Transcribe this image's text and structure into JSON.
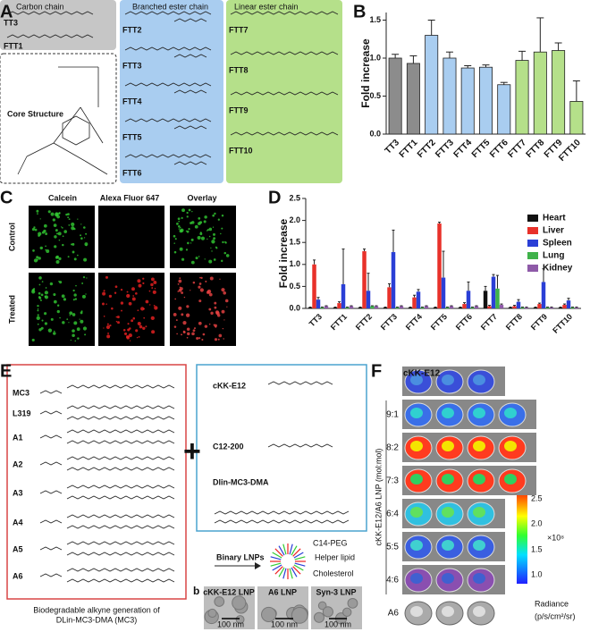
{
  "panels": {
    "letters": [
      "A",
      "B",
      "C",
      "D",
      "E",
      "F"
    ],
    "a": {
      "carbon_title": "Carbon chain",
      "carbon": [
        "TT3",
        "FTT1"
      ],
      "core_title": "Core Structure",
      "branched_title": "Branched ester chain",
      "branched": [
        "FTT2",
        "FTT3",
        "FTT4",
        "FTT5",
        "FTT6"
      ],
      "linear_title": "Linear ester chain",
      "linear": [
        "FTT7",
        "FTT8",
        "FTT9",
        "FTT10"
      ]
    },
    "c": {
      "columns": [
        "Calcein",
        "Alexa Fluor 647",
        "Overlay"
      ],
      "rows": [
        "Control",
        "Treated"
      ]
    },
    "e": {
      "lipids": [
        "MC3",
        "L319",
        "A1",
        "A2",
        "A3",
        "A4",
        "A5",
        "A6"
      ],
      "caption": [
        "Biodegradable alkyne generation of",
        "DLin-MC3-DMA (MC3)"
      ],
      "references": [
        "cKK-E12",
        "C12-200",
        "Dlin-MC3-DMA"
      ],
      "binary": "Binary LNPs",
      "components": [
        "C14-PEG",
        "Helper lipid",
        "Cholesterol"
      ],
      "sub": "b",
      "tem": [
        "cKK-E12 LNP",
        "A6 LNP",
        "Syn-3 LNP"
      ],
      "scale": [
        "100 nm",
        "100 nm",
        "100 nm"
      ]
    },
    "f": {
      "rows": [
        "cKK-E12",
        "9:1",
        "8:2",
        "7:3",
        "6:4",
        "5:5",
        "4:6",
        "A6"
      ],
      "axis": "cKK-E12/A6 LNP (mol:mol)",
      "colorbar_ticks": [
        "2.5",
        "2.0",
        "1.5",
        "1.0"
      ],
      "multiplier": "×10⁸",
      "unit": [
        "Radiance",
        "(p/s/cm²/sr)"
      ]
    }
  },
  "chart_data": [
    {
      "type": "bar",
      "ylabel": "Fold increase",
      "categories": [
        "TT3",
        "FTT1",
        "FTT2",
        "FTT3",
        "FTT4",
        "FTT5",
        "FTT6",
        "FTT7",
        "FTT8",
        "FTT9",
        "FTT10"
      ],
      "values": [
        1.0,
        0.93,
        1.3,
        1.0,
        0.87,
        0.88,
        0.65,
        0.97,
        1.08,
        1.1,
        0.43
      ],
      "errors": [
        0.05,
        0.1,
        0.2,
        0.08,
        0.03,
        0.03,
        0.03,
        0.12,
        0.45,
        0.1,
        0.27
      ],
      "colors": [
        "#8c8c8c",
        "#8c8c8c",
        "#a9cdf0",
        "#a9cdf0",
        "#a9cdf0",
        "#a9cdf0",
        "#a9cdf0",
        "#b5e08a",
        "#b5e08a",
        "#b5e08a",
        "#b5e08a"
      ],
      "ylim": [
        0,
        1.6
      ],
      "yticks": [
        {
          "value": 0,
          "label": "0.0"
        },
        0.5,
        {
          "value": 1,
          "label": "1.0"
        },
        1.5
      ]
    },
    {
      "type": "grouped_bar",
      "ylabel": "Fold increase",
      "legend": "upper right",
      "categories": [
        "TT3",
        "FTT1",
        "FTT2",
        "FTT3",
        "FTT4",
        "FTT5",
        "FTT6",
        "FTT7",
        "FTT8",
        "FTT9",
        "FTT10"
      ],
      "series": [
        {
          "name": "Heart",
          "color": "#111111",
          "values": [
            0.02,
            0.02,
            0.02,
            0.02,
            0.02,
            0.02,
            0.02,
            0.4,
            0.02,
            0.02,
            0.02
          ],
          "errors": [
            0.01,
            0.01,
            0.01,
            0.01,
            0.01,
            0.01,
            0.01,
            0.1,
            0.01,
            0.01,
            0.01
          ]
        },
        {
          "name": "Liver",
          "color": "#e8312a",
          "values": [
            1.0,
            0.12,
            1.3,
            0.48,
            0.25,
            1.93,
            0.1,
            0.05,
            0.05,
            0.1,
            0.08
          ],
          "errors": [
            0.1,
            0.03,
            0.05,
            0.08,
            0.05,
            0.03,
            0.03,
            0.02,
            0.02,
            0.02,
            0.02
          ]
        },
        {
          "name": "Spleen",
          "color": "#2a3fd6",
          "values": [
            0.2,
            0.55,
            0.4,
            1.28,
            0.38,
            0.7,
            0.4,
            0.72,
            0.15,
            0.6,
            0.18
          ],
          "errors": [
            0.05,
            0.8,
            0.4,
            0.5,
            0.05,
            0.6,
            0.2,
            0.05,
            0.05,
            0.3,
            0.05
          ]
        },
        {
          "name": "Lung",
          "color": "#3fb24a",
          "values": [
            0.02,
            0.02,
            0.05,
            0.02,
            0.02,
            0.02,
            0.02,
            0.45,
            0.02,
            0.02,
            0.02
          ],
          "errors": [
            0.01,
            0.01,
            0.01,
            0.01,
            0.01,
            0.01,
            0.01,
            0.3,
            0.01,
            0.01,
            0.01
          ]
        },
        {
          "name": "Kidney",
          "color": "#8e5aa8",
          "values": [
            0.05,
            0.05,
            0.05,
            0.05,
            0.05,
            0.05,
            0.05,
            0.08,
            0.02,
            0.02,
            0.02
          ],
          "errors": [
            0.01,
            0.01,
            0.01,
            0.01,
            0.01,
            0.01,
            0.01,
            0.02,
            0.01,
            0.01,
            0.01
          ]
        }
      ],
      "ylim": [
        0,
        2.5
      ],
      "yticks": [
        {
          "value": 0,
          "label": "0.0"
        },
        0.5,
        {
          "value": 1,
          "label": "1.0"
        },
        1.5,
        {
          "value": 2,
          "label": "2.0"
        },
        2.5
      ]
    }
  ]
}
